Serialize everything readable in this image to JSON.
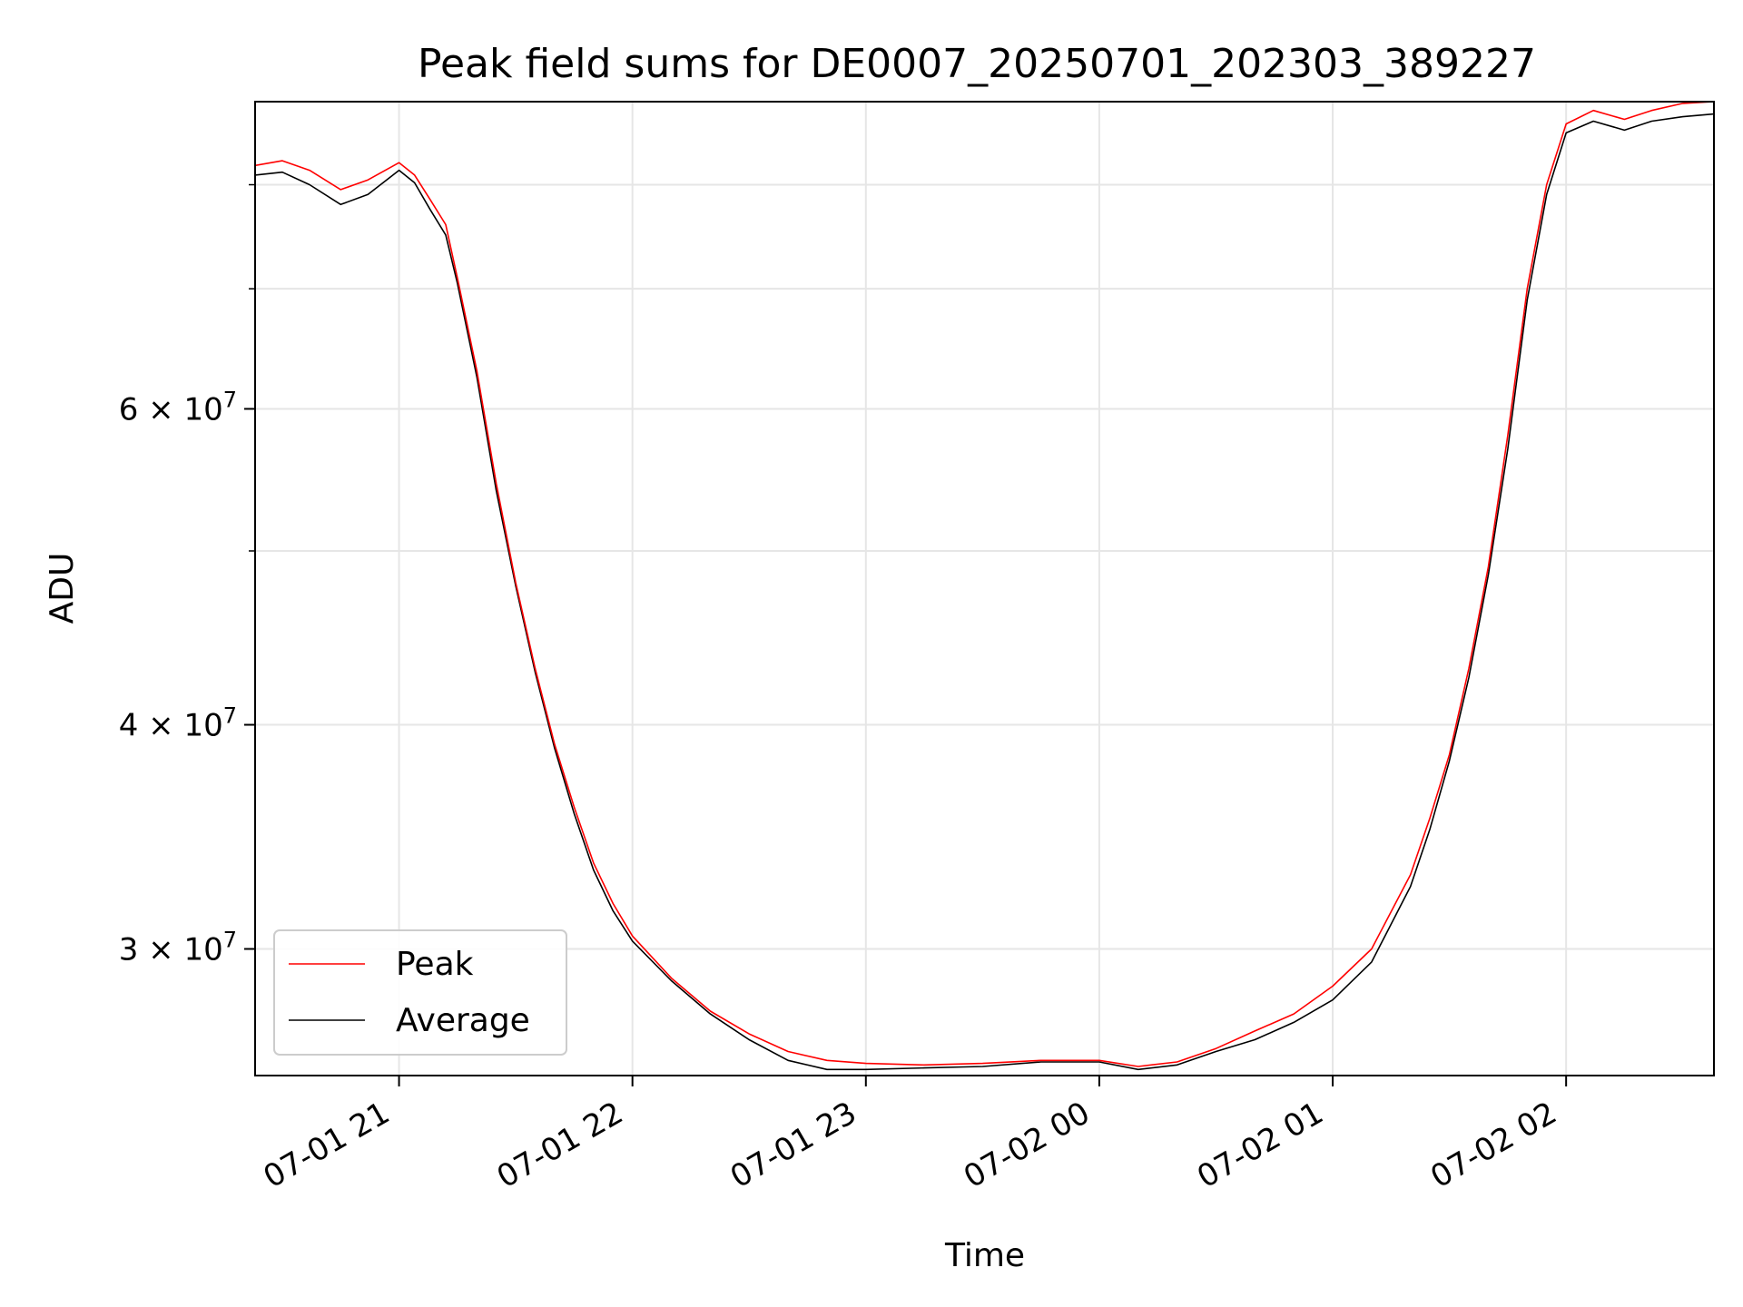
{
  "chart_data": {
    "type": "line",
    "title": "Peak field sums for DE0007_20250701_202303_389227",
    "xlabel": "Time",
    "ylabel": "ADU",
    "yscale": "log",
    "xlim": [
      "07-01 20:23",
      "07-02 02:38"
    ],
    "ylim": [
      25500000,
      89000000
    ],
    "grid": true,
    "legend_position": "lower-left",
    "x_ticks": [
      "07-01 21",
      "07-01 22",
      "07-01 23",
      "07-02 00",
      "07-02 01",
      "07-02 02"
    ],
    "y_ticks": [
      {
        "value": 30000000,
        "label": "3 × 10^7"
      },
      {
        "value": 40000000,
        "label": "4 × 10^7"
      },
      {
        "value": 60000000,
        "label": "6 × 10^7"
      }
    ],
    "y_minor_ticks": [
      50000000,
      70000000,
      80000000
    ],
    "x": [
      "07-01 20:23",
      "07-01 20:30",
      "07-01 20:37",
      "07-01 20:45",
      "07-01 20:52",
      "07-01 21:00",
      "07-01 21:04",
      "07-01 21:08",
      "07-01 21:12",
      "07-01 21:15",
      "07-01 21:20",
      "07-01 21:25",
      "07-01 21:30",
      "07-01 21:35",
      "07-01 21:40",
      "07-01 21:45",
      "07-01 21:50",
      "07-01 21:55",
      "07-01 22:00",
      "07-01 22:10",
      "07-01 22:20",
      "07-01 22:30",
      "07-01 22:40",
      "07-01 22:50",
      "07-01 23:00",
      "07-01 23:15",
      "07-01 23:30",
      "07-01 23:45",
      "07-02 00:00",
      "07-02 00:10",
      "07-02 00:20",
      "07-02 00:30",
      "07-02 00:40",
      "07-02 00:50",
      "07-02 01:00",
      "07-02 01:10",
      "07-02 01:20",
      "07-02 01:25",
      "07-02 01:30",
      "07-02 01:35",
      "07-02 01:40",
      "07-02 01:45",
      "07-02 01:50",
      "07-02 01:55",
      "07-02 02:00",
      "07-02 02:07",
      "07-02 02:15",
      "07-02 02:22",
      "07-02 02:30",
      "07-02 02:38"
    ],
    "series": [
      {
        "name": "Peak",
        "color": "#ff0000",
        "values": [
          82000000,
          82500000,
          81500000,
          79500000,
          80500000,
          82300000,
          81000000,
          78500000,
          76000000,
          71000000,
          63000000,
          54500000,
          48000000,
          43000000,
          39000000,
          36000000,
          33500000,
          31800000,
          30500000,
          28900000,
          27700000,
          26900000,
          26300000,
          26000000,
          25900000,
          25850000,
          25900000,
          26000000,
          26000000,
          25800000,
          25950000,
          26400000,
          27000000,
          27600000,
          28600000,
          30000000,
          33000000,
          35500000,
          38500000,
          43000000,
          49000000,
          58000000,
          70000000,
          80000000,
          86500000,
          88000000,
          87000000,
          88000000,
          88800000,
          89000000
        ]
      },
      {
        "name": "Average",
        "color": "#000000",
        "values": [
          81000000,
          81300000,
          80000000,
          78000000,
          79000000,
          81500000,
          80200000,
          77500000,
          75000000,
          70500000,
          62500000,
          54000000,
          47800000,
          42800000,
          38800000,
          35700000,
          33200000,
          31500000,
          30300000,
          28800000,
          27600000,
          26700000,
          26000000,
          25700000,
          25700000,
          25750000,
          25800000,
          25950000,
          25950000,
          25700000,
          25850000,
          26300000,
          26700000,
          27300000,
          28100000,
          29500000,
          32500000,
          35000000,
          38200000,
          42500000,
          48500000,
          57000000,
          69000000,
          79000000,
          85500000,
          86800000,
          85800000,
          86800000,
          87300000,
          87600000
        ]
      }
    ]
  }
}
